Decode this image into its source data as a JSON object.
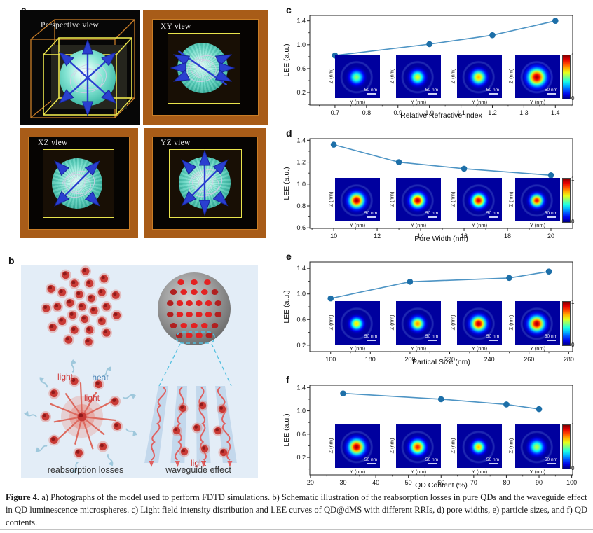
{
  "panel_a": {
    "label": "a",
    "views": [
      {
        "title": "Perspective view"
      },
      {
        "title": "XY view"
      },
      {
        "title": "XZ view"
      },
      {
        "title": "YZ view"
      }
    ]
  },
  "panel_b": {
    "label": "b",
    "annotations": {
      "light_top": "light",
      "heat": "heat",
      "light_center": "light",
      "light_bottom": "light"
    },
    "captions": {
      "left": "reabsorption losses",
      "right": "waveguide effect"
    }
  },
  "caption": {
    "prefix": "Figure 4.",
    "body": "a) Photographs of the model used to perform FDTD simulations. b) Schematic illustration of the reabsorption losses in pure QDs and the waveguide effect in QD luminescence microspheres. c) Light field intensity distribution and LEE curves of QD@dMS with different RRIs, d) pore widths, e) particle sizes, and f) QD contents."
  },
  "chart_data": [
    {
      "panel_label": "c",
      "type": "line",
      "x": [
        0.7,
        1.0,
        1.2,
        1.4
      ],
      "y": [
        0.82,
        1.01,
        1.16,
        1.4
      ],
      "xlabel": "Relative Refractive Index",
      "ylabel": "LEE (a.u.)",
      "xticks": [
        0.7,
        0.8,
        0.9,
        1.0,
        1.1,
        1.2,
        1.3,
        1.4
      ],
      "xtick_labels": [
        "0.7",
        "0.8",
        "0.9",
        "1.0",
        "1.1",
        "1.2",
        "1.3",
        "1.4"
      ],
      "yticks": [
        0.2,
        0.6,
        1.0,
        1.4
      ],
      "ytick_labels": [
        "0.2",
        "0.6",
        "1.0",
        "1.4"
      ],
      "xlim": [
        0.62,
        1.455
      ],
      "ylim": [
        -0.01,
        1.49
      ],
      "line_color": "#4d94c4",
      "marker_color": "#1d6fa8",
      "insets": {
        "xlabel": "Y (nm)",
        "ylabel": "Z (nm)",
        "scalebar": "50 nm",
        "peaks": [
          0.52,
          0.6,
          0.7,
          0.97
        ],
        "sizes": [
          1,
          1,
          1.05,
          1.3
        ]
      },
      "colorbar": {
        "max": "1",
        "min": "0"
      }
    },
    {
      "panel_label": "d",
      "type": "line",
      "x": [
        10,
        13,
        16,
        20
      ],
      "y": [
        1.36,
        1.2,
        1.14,
        1.08
      ],
      "xlabel": "Pore Width (nm)",
      "ylabel": "LEE (a.u.)",
      "xticks": [
        10,
        12,
        14,
        16,
        18,
        20
      ],
      "xtick_labels": [
        "10",
        "12",
        "14",
        "16",
        "18",
        "20"
      ],
      "yticks": [
        0.6,
        0.8,
        1.0,
        1.2,
        1.4
      ],
      "ytick_labels": [
        "0.6",
        "0.8",
        "1.0",
        "1.2",
        "1.4"
      ],
      "xlim": [
        8.9,
        21.0
      ],
      "ylim": [
        0.595,
        1.415
      ],
      "line_color": "#4d94c4",
      "marker_color": "#1d6fa8",
      "insets": {
        "xlabel": "Y (nm)",
        "ylabel": "Z (nm)",
        "scalebar": "50 nm",
        "peaks": [
          0.97,
          0.95,
          0.92,
          0.88
        ],
        "sizes": [
          1.1,
          1.05,
          1,
          0.92
        ]
      },
      "colorbar": {
        "max": "1",
        "min": "0"
      }
    },
    {
      "panel_label": "e",
      "type": "line",
      "x": [
        160,
        200,
        250,
        270
      ],
      "y": [
        0.93,
        1.19,
        1.25,
        1.35
      ],
      "xlabel": "Partical Size (nm)",
      "ylabel": "LEE (a.u.)",
      "xticks": [
        160,
        180,
        200,
        220,
        240,
        260,
        280
      ],
      "xtick_labels": [
        "160",
        "180",
        "200",
        "220",
        "240",
        "260",
        "280"
      ],
      "yticks": [
        0.2,
        0.6,
        1.0,
        1.4
      ],
      "ytick_labels": [
        "0.2",
        "0.6",
        "1.0",
        "1.4"
      ],
      "xlim": [
        149.5,
        282
      ],
      "ylim": [
        0.1,
        1.5
      ],
      "line_color": "#4d94c4",
      "marker_color": "#1d6fa8",
      "insets": {
        "xlabel": "Y (nm)",
        "ylabel": "Z (nm)",
        "scalebar": "50 nm",
        "peaks": [
          0.66,
          0.74,
          0.95,
          0.97
        ],
        "sizes": [
          0.9,
          0.95,
          1.1,
          1.15
        ]
      },
      "colorbar": {
        "max": "1",
        "min": "0"
      }
    },
    {
      "panel_label": "f",
      "type": "line",
      "x": [
        30,
        60,
        80,
        90
      ],
      "y": [
        1.3,
        1.2,
        1.11,
        1.03
      ],
      "xlabel": "QD Content (%)",
      "ylabel": "LEE (a.u.)",
      "xticks": [
        20,
        30,
        40,
        50,
        60,
        70,
        80,
        90,
        100
      ],
      "xtick_labels": [
        "20",
        "30",
        "40",
        "50",
        "60",
        "70",
        "80",
        "90",
        "100"
      ],
      "yticks": [
        0.2,
        0.6,
        1.0,
        1.4
      ],
      "ytick_labels": [
        "0.2",
        "0.6",
        "1.0",
        "1.4"
      ],
      "xlim": [
        19.8,
        100.3
      ],
      "ylim": [
        -0.1,
        1.44
      ],
      "line_color": "#4d94c4",
      "marker_color": "#1d6fa8",
      "insets": {
        "xlabel": "Y (nm)",
        "ylabel": "Z (nm)",
        "scalebar": "50 nm",
        "peaks": [
          0.97,
          0.85,
          0.7,
          0.55
        ],
        "sizes": [
          1.15,
          1.05,
          0.9,
          1.05
        ]
      },
      "colorbar": {
        "max": "1",
        "min": "0"
      }
    }
  ]
}
